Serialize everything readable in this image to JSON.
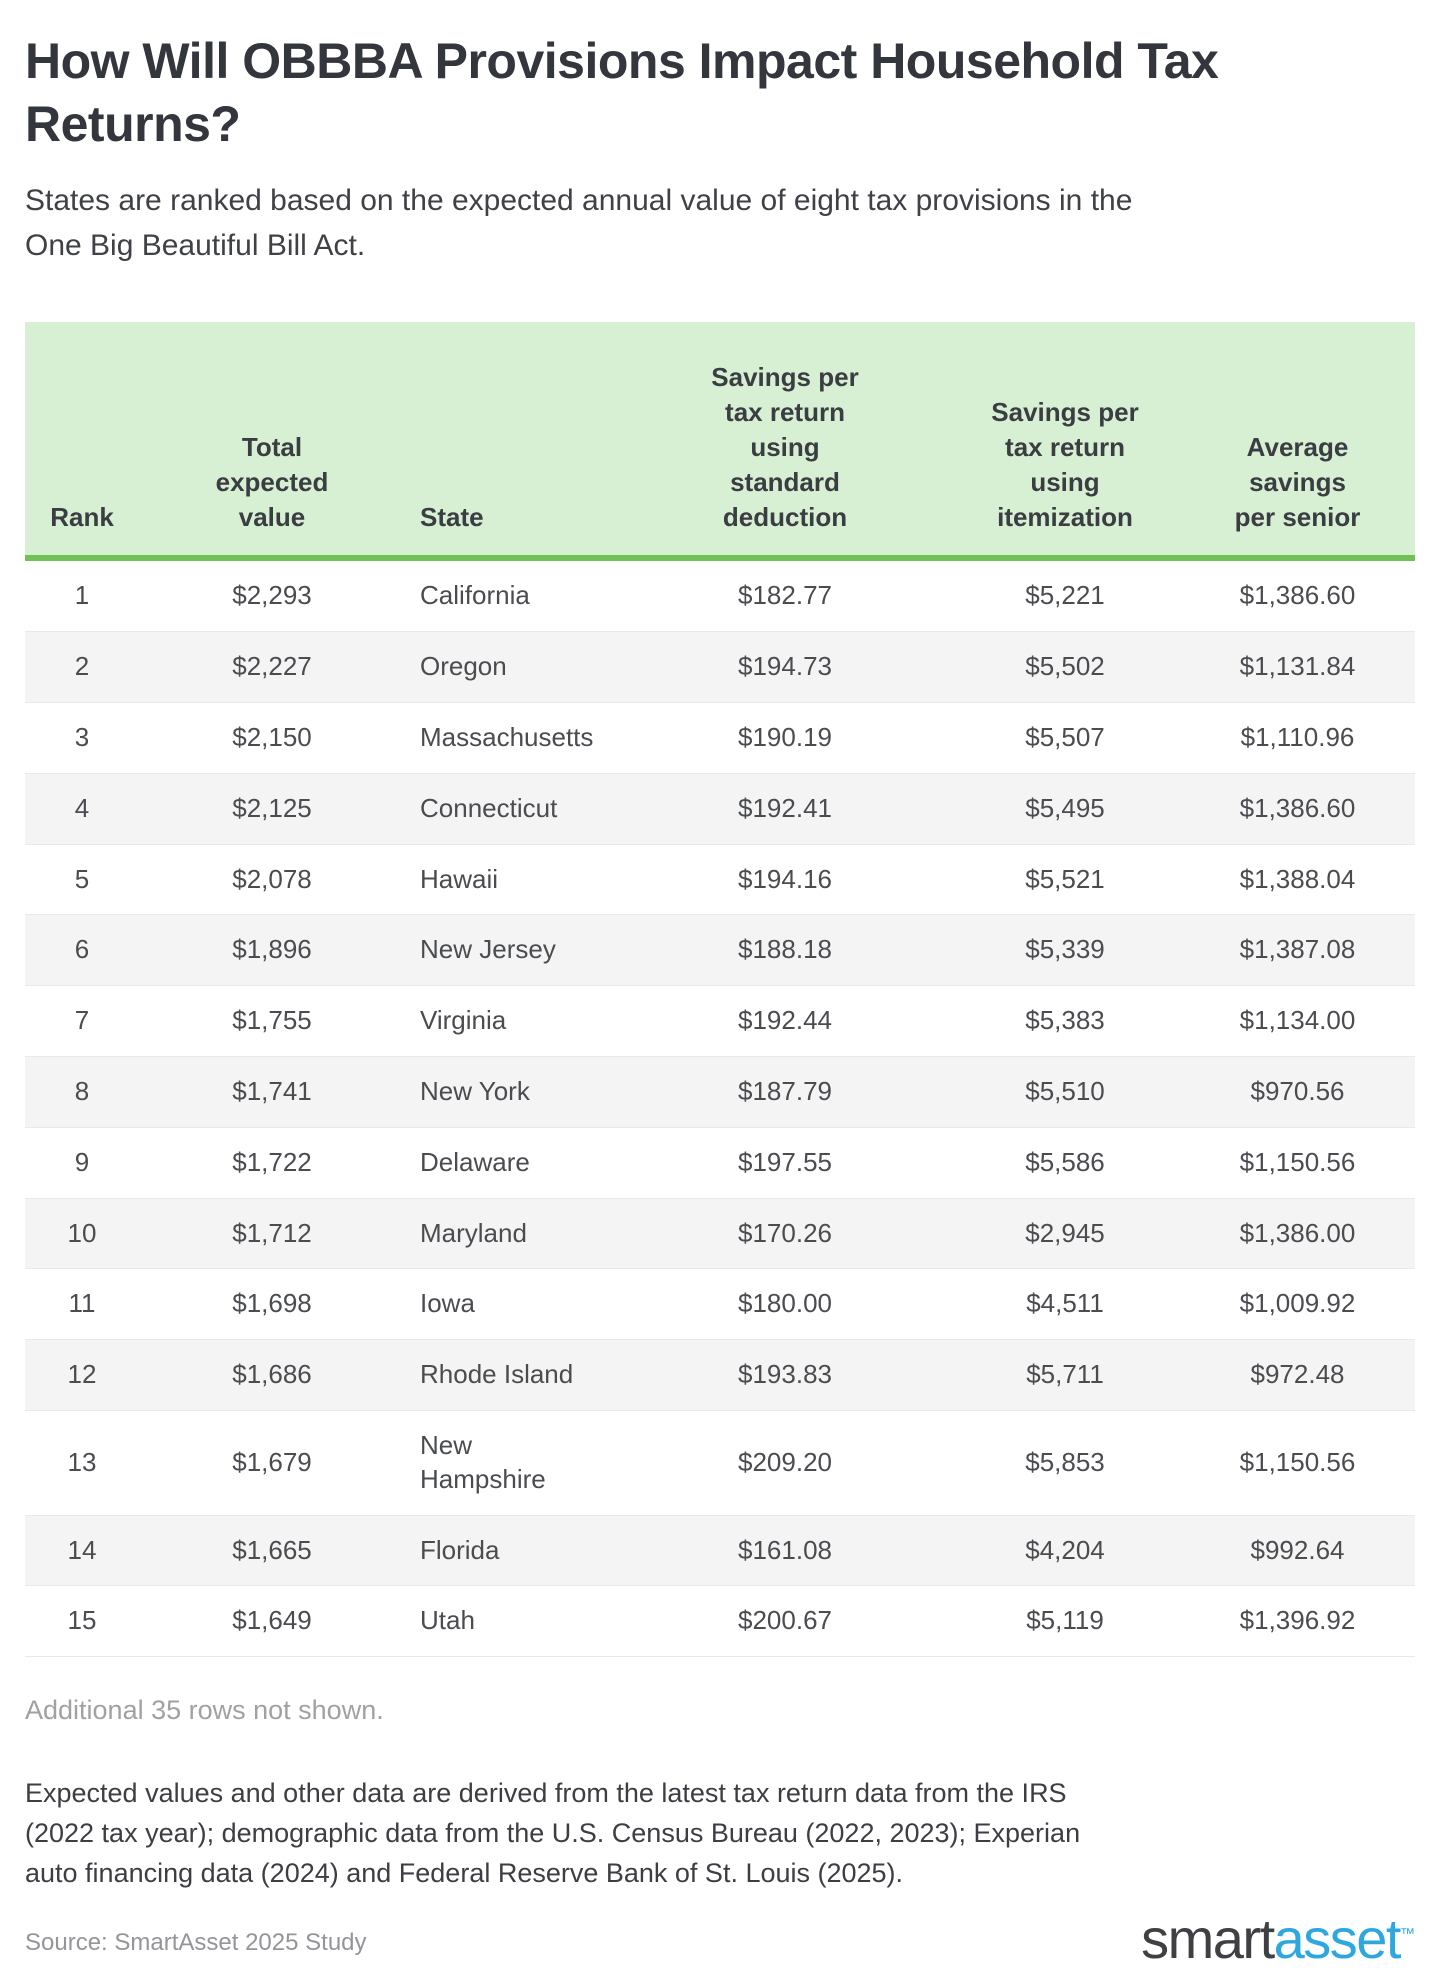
{
  "chart_data": {
    "type": "table",
    "title": "How Will OBBBA Provisions Impact Household Tax\nReturns?",
    "subtitle": "States are ranked based on the expected annual value of eight tax provisions in the\nOne Big Beautiful Bill Act.",
    "columns": [
      {
        "key": "rank",
        "label": "Rank",
        "align": "center"
      },
      {
        "key": "total_expected_value",
        "label": "Total\nexpected\nvalue",
        "align": "center"
      },
      {
        "key": "state",
        "label": "State",
        "align": "left"
      },
      {
        "key": "savings_standard_deduction",
        "label": "Savings per\ntax return\nusing\nstandard\ndeduction",
        "align": "center"
      },
      {
        "key": "savings_itemization",
        "label": "Savings per\ntax return\nusing\nitemization",
        "align": "center"
      },
      {
        "key": "avg_savings_per_senior",
        "label": "Average\nsavings\nper senior",
        "align": "center"
      }
    ],
    "rows": [
      [
        "1",
        "$2,293",
        "California",
        "$182.77",
        "$5,221",
        "$1,386.60"
      ],
      [
        "2",
        "$2,227",
        "Oregon",
        "$194.73",
        "$5,502",
        "$1,131.84"
      ],
      [
        "3",
        "$2,150",
        "Massachusetts",
        "$190.19",
        "$5,507",
        "$1,110.96"
      ],
      [
        "4",
        "$2,125",
        "Connecticut",
        "$192.41",
        "$5,495",
        "$1,386.60"
      ],
      [
        "5",
        "$2,078",
        "Hawaii",
        "$194.16",
        "$5,521",
        "$1,388.04"
      ],
      [
        "6",
        "$1,896",
        "New Jersey",
        "$188.18",
        "$5,339",
        "$1,387.08"
      ],
      [
        "7",
        "$1,755",
        "Virginia",
        "$192.44",
        "$5,383",
        "$1,134.00"
      ],
      [
        "8",
        "$1,741",
        "New York",
        "$187.79",
        "$5,510",
        "$970.56"
      ],
      [
        "9",
        "$1,722",
        "Delaware",
        "$197.55",
        "$5,586",
        "$1,150.56"
      ],
      [
        "10",
        "$1,712",
        "Maryland",
        "$170.26",
        "$2,945",
        "$1,386.00"
      ],
      [
        "11",
        "$1,698",
        "Iowa",
        "$180.00",
        "$4,511",
        "$1,009.92"
      ],
      [
        "12",
        "$1,686",
        "Rhode Island",
        "$193.83",
        "$5,711",
        "$972.48"
      ],
      [
        "13",
        "$1,679",
        "New\nHampshire",
        "$209.20",
        "$5,853",
        "$1,150.56"
      ],
      [
        "14",
        "$1,665",
        "Florida",
        "$161.08",
        "$4,204",
        "$992.64"
      ],
      [
        "15",
        "$1,649",
        "Utah",
        "$200.67",
        "$5,119",
        "$1,396.92"
      ]
    ],
    "note": "Additional 35 rows not shown.",
    "legend_position": "none",
    "grid": "horizontal-row-dividers"
  },
  "footer": {
    "methodology": "Expected values and other data are derived from the latest tax return data from the IRS\n(2022 tax year); demographic data from the U.S. Census Bureau (2022, 2023); Experian\nauto financing data (2024) and Federal Reserve Bank of St. Louis (2025).",
    "source": "Source: SmartAsset 2025 Study",
    "logo": {
      "part1": "smart",
      "part2": "asset",
      "tm": "™"
    }
  },
  "colors": {
    "header_bg": "#d7efd3",
    "accent_green": "#72c155",
    "alt_row_bg": "#f4f4f4",
    "row_border": "#e9e9e9",
    "title_text": "#33363c",
    "body_text": "#4a4c50",
    "muted_text": "#9fa1a3",
    "source_text": "#939598",
    "logo_dark": "#3e4044",
    "logo_blue": "#2ea7de"
  }
}
